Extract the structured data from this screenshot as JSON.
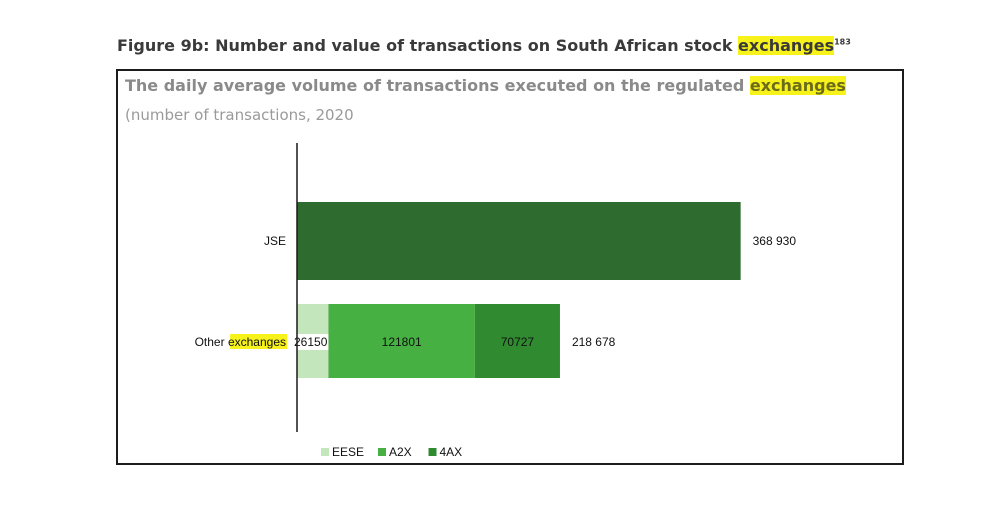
{
  "figure": {
    "title_prefix": "Figure 9b: Number and value of transactions on South African stock ",
    "title_highlight": "exchanges",
    "footnote": "183"
  },
  "chart_data": {
    "type": "bar",
    "orientation": "horizontal",
    "stacked": true,
    "title_prefix": "The daily average volume of transactions executed on the regulated ",
    "title_highlight": "exchanges",
    "subtitle": "(number of transactions, 2020",
    "categories": [
      "JSE",
      "Other exchanges"
    ],
    "category_label_parts": [
      {
        "text": "JSE",
        "highlight": ""
      },
      {
        "text": "Other ",
        "highlight": "exchanges"
      }
    ],
    "series": [
      {
        "name": "JSE",
        "values": [
          368930,
          0
        ],
        "color": "#2e6b2e",
        "show_in_legend": false
      },
      {
        "name": "EESE",
        "values": [
          0,
          26150
        ],
        "color": "#c3e6bd",
        "show_in_legend": true
      },
      {
        "name": "A2X",
        "values": [
          0,
          121801
        ],
        "color": "#47b043",
        "show_in_legend": true
      },
      {
        "name": "4AX",
        "values": [
          0,
          70727
        ],
        "color": "#2f8a30",
        "show_in_legend": true
      }
    ],
    "segment_labels": [
      {
        "category": "Other exchanges",
        "series": "EESE",
        "text": "26150"
      },
      {
        "category": "Other exchanges",
        "series": "A2X",
        "text": "121801"
      },
      {
        "category": "Other exchanges",
        "series": "4AX",
        "text": "70727"
      }
    ],
    "totals": [
      "368 930",
      "218 678"
    ],
    "xlim": [
      0,
      400000
    ],
    "legend_position": "bottom",
    "grid": false,
    "highlight_color": "#f6f21a"
  }
}
